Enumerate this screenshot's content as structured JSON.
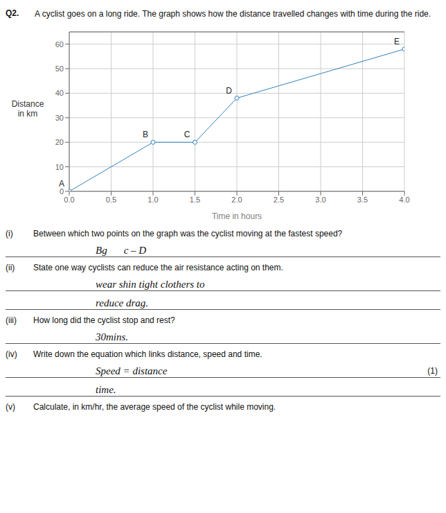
{
  "chart_data": {
    "type": "line",
    "title": "Q2.",
    "subtitle": "A cyclist goes on a long ride. The graph shows how the distance travelled changes with time during the ride.",
    "x_label": "Time in hours",
    "y_label": "Distance\nin km",
    "x": [
      0,
      1.0,
      1.5,
      2.0,
      4.0
    ],
    "values": [
      0,
      20,
      20,
      38,
      58
    ],
    "point_labels": [
      "A",
      "B",
      "C",
      "D",
      "E"
    ],
    "xlim": [
      0,
      4.0
    ],
    "ylim": [
      0,
      65
    ],
    "xticks": [
      {
        "value": 0,
        "label": "0.0"
      },
      0.5,
      {
        "value": 1.0,
        "label": "1.0"
      },
      1.5,
      {
        "value": 2.0,
        "label": "2.0"
      },
      2.5,
      {
        "value": 3.0,
        "label": "3.0"
      },
      3.5,
      {
        "value": 4.0,
        "label": "4.0"
      }
    ],
    "yticks": [
      0,
      10,
      20,
      30,
      40,
      50,
      60
    ],
    "grid": true,
    "annotations": [
      {
        "number": "(i)",
        "text": "Between which two points on the graph was the cyclist moving at the fastest speed?",
        "answer": [
          [
            "Bg",
            "c – D"
          ]
        ]
      },
      {
        "number": "(ii)",
        "text": "State one way cyclists can reduce the air resistance acting on them.",
        "answer": [
          [
            "wear  shin tight  clothers to"
          ],
          [
            "reduce drag."
          ]
        ]
      },
      {
        "number": "(iii)",
        "text": "How long did the cyclist stop and rest?",
        "answer": [
          [
            "30mins."
          ]
        ]
      },
      {
        "number": "(iv)",
        "text": "Write down the equation which links distance, speed and time.",
        "answer": [
          [
            "Speed = distance"
          ],
          [
            "time."
          ]
        ],
        "mark": "(1)"
      },
      {
        "number": "(v)",
        "text": "Calculate, in km/hr, the average speed of the cyclist while moving."
      }
    ]
  }
}
